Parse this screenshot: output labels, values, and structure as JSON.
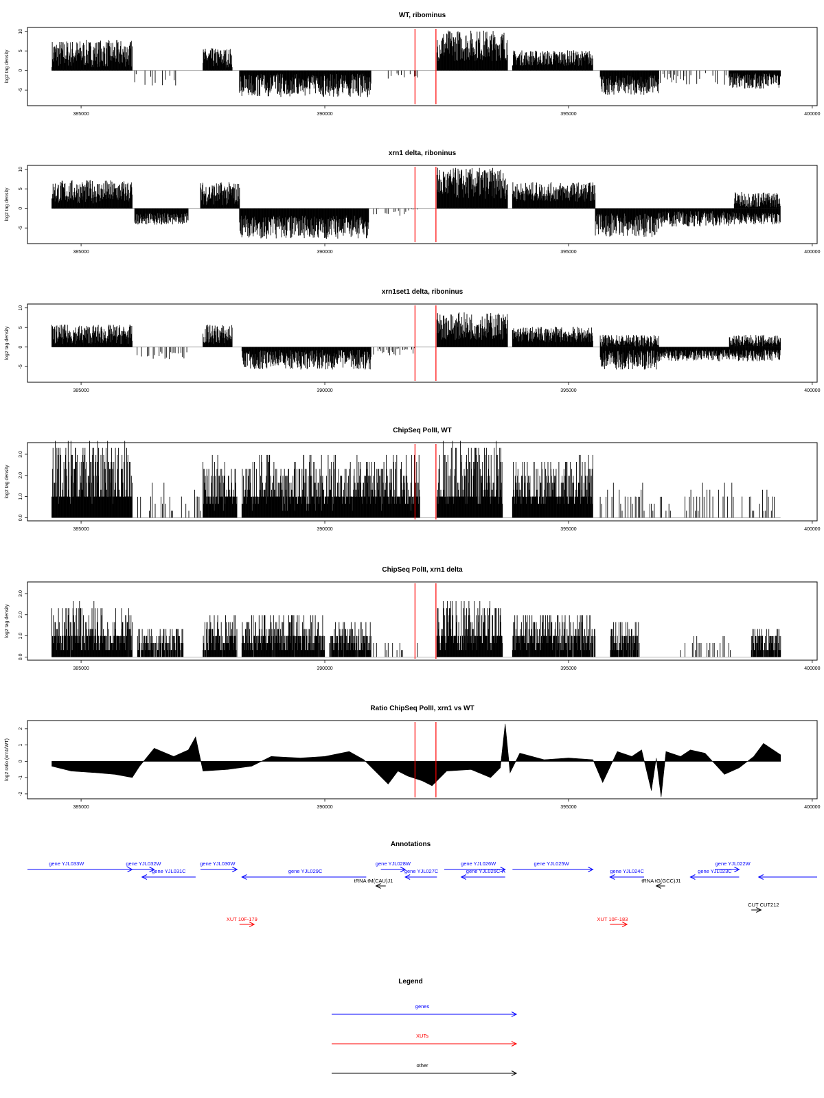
{
  "colors": {
    "genes": "#0000ff",
    "xuts": "#ff0000",
    "other": "#000000",
    "marker": "#ff0000",
    "data": "#000000"
  },
  "chart_data": [
    {
      "type": "bar",
      "title": "WT, ribominus",
      "ylabel": "log2 tag density",
      "x_ticks": [
        "385000",
        "390000",
        "395000",
        "400000"
      ],
      "xlim": [
        383900,
        400100
      ],
      "y_ticks": [
        "-5",
        "0",
        "5",
        "10"
      ],
      "ylim": [
        -9,
        11
      ],
      "baseline": 0,
      "markers_x": [
        391850,
        392280
      ],
      "segments": [
        {
          "x": [
            384400,
            386050
          ],
          "sign": 1,
          "level": 4,
          "spread": 3.5
        },
        {
          "x": [
            386100,
            387150
          ],
          "sign": -1,
          "level": 2.2,
          "spread": 1.5,
          "sparse": true
        },
        {
          "x": [
            387500,
            388100
          ],
          "sign": 1,
          "level": 3,
          "spread": 2.5
        },
        {
          "x": [
            388250,
            390950
          ],
          "sign": -1,
          "level": 3.5,
          "spread": 3
        },
        {
          "x": [
            391300,
            391900
          ],
          "sign": -1,
          "level": 1,
          "spread": 1,
          "sparse": true
        },
        {
          "x": [
            392300,
            393750
          ],
          "sign": 1,
          "level": 6,
          "spread": 4
        },
        {
          "x": [
            393850,
            395500
          ],
          "sign": 1,
          "level": 3,
          "spread": 2
        },
        {
          "x": [
            395650,
            396850
          ],
          "sign": -1,
          "level": 3.5,
          "spread": 2.5
        },
        {
          "x": [
            396850,
            398300
          ],
          "sign": -1,
          "level": 2,
          "spread": 1.5,
          "sparse": true
        },
        {
          "x": [
            398300,
            399350
          ],
          "sign": -1,
          "level": 2.5,
          "spread": 2
        }
      ]
    },
    {
      "type": "bar",
      "title": "xrn1 delta, riboninus",
      "ylabel": "log2 tag density",
      "x_ticks": [
        "385000",
        "390000",
        "395000",
        "400000"
      ],
      "xlim": [
        383900,
        400100
      ],
      "y_ticks": [
        "-5",
        "0",
        "5",
        "10"
      ],
      "ylim": [
        -9,
        11
      ],
      "baseline": 0,
      "markers_x": [
        391850,
        392280
      ],
      "segments": [
        {
          "x": [
            384400,
            386050
          ],
          "sign": 1,
          "level": 4,
          "spread": 3
        },
        {
          "x": [
            386100,
            387200
          ],
          "sign": -1,
          "level": 2.5,
          "spread": 1.5
        },
        {
          "x": [
            387450,
            388250
          ],
          "sign": 1,
          "level": 3.5,
          "spread": 3
        },
        {
          "x": [
            388250,
            390900
          ],
          "sign": -1,
          "level": 4.5,
          "spread": 3
        },
        {
          "x": [
            391000,
            391900
          ],
          "sign": -1,
          "level": 1,
          "spread": 1,
          "sparse": true
        },
        {
          "x": [
            392300,
            393750
          ],
          "sign": 1,
          "level": 6,
          "spread": 4
        },
        {
          "x": [
            393850,
            395550
          ],
          "sign": 1,
          "level": 4,
          "spread": 2.5
        },
        {
          "x": [
            395550,
            396850
          ],
          "sign": -1,
          "level": 4,
          "spread": 3
        },
        {
          "x": [
            396850,
            398400
          ],
          "sign": -1,
          "level": 2.5,
          "spread": 2
        },
        {
          "x": [
            398400,
            399350
          ],
          "sign": 1,
          "level": 2,
          "spread": 2
        },
        {
          "x": [
            398400,
            399350
          ],
          "sign": -1,
          "level": 2.5,
          "spread": 1.5
        }
      ]
    },
    {
      "type": "bar",
      "title": "xrn1set1 delta, riboninus",
      "ylabel": "log2 tag density",
      "x_ticks": [
        "385000",
        "390000",
        "395000",
        "400000"
      ],
      "xlim": [
        383900,
        400100
      ],
      "y_ticks": [
        "-5",
        "0",
        "5",
        "10"
      ],
      "ylim": [
        -9,
        11
      ],
      "baseline": 0,
      "markers_x": [
        391850,
        392280
      ],
      "segments": [
        {
          "x": [
            384400,
            386050
          ],
          "sign": 1,
          "level": 3,
          "spread": 2.5
        },
        {
          "x": [
            386150,
            387200
          ],
          "sign": -1,
          "level": 2,
          "spread": 1.2,
          "sparse": true
        },
        {
          "x": [
            387500,
            388100
          ],
          "sign": 1,
          "level": 3,
          "spread": 2.5
        },
        {
          "x": [
            388300,
            390950
          ],
          "sign": -1,
          "level": 3,
          "spread": 2.5
        },
        {
          "x": [
            391000,
            391900
          ],
          "sign": -1,
          "level": 1,
          "spread": 1,
          "sparse": true
        },
        {
          "x": [
            392300,
            393750
          ],
          "sign": 1,
          "level": 5,
          "spread": 3.5
        },
        {
          "x": [
            393850,
            395500
          ],
          "sign": 1,
          "level": 3,
          "spread": 2
        },
        {
          "x": [
            395650,
            396850
          ],
          "sign": -1,
          "level": 3,
          "spread": 2.5
        },
        {
          "x": [
            395650,
            396850
          ],
          "sign": 1,
          "level": 1.5,
          "spread": 1.5
        },
        {
          "x": [
            396850,
            398300
          ],
          "sign": -1,
          "level": 2,
          "spread": 1.5
        },
        {
          "x": [
            398300,
            399350
          ],
          "sign": -1,
          "level": 2,
          "spread": 1.5
        },
        {
          "x": [
            398300,
            399350
          ],
          "sign": 1,
          "level": 1.5,
          "spread": 1.5
        }
      ]
    },
    {
      "type": "bar",
      "title": "ChipSeq PolII, WT",
      "ylabel": "log2 tag density",
      "x_ticks": [
        "385000",
        "390000",
        "395000",
        "400000"
      ],
      "xlim": [
        383900,
        400100
      ],
      "y_ticks": [
        "0.0",
        "1.0",
        "2.0",
        "3.0"
      ],
      "ylim": [
        -0.15,
        3.55
      ],
      "baseline": 0,
      "markers_x": [
        391850,
        392280
      ],
      "positive_only": true,
      "segments": [
        {
          "x": [
            384400,
            386050
          ],
          "sign": 1,
          "level": 2.0,
          "spread": 1.5
        },
        {
          "x": [
            386100,
            387500
          ],
          "sign": 1,
          "level": 0.8,
          "spread": 0.8,
          "sparse": true
        },
        {
          "x": [
            387500,
            388200
          ],
          "sign": 1,
          "level": 1.5,
          "spread": 1.2
        },
        {
          "x": [
            388300,
            391950
          ],
          "sign": 1,
          "level": 1.6,
          "spread": 1.3
        },
        {
          "x": [
            392300,
            393650
          ],
          "sign": 1,
          "level": 2.0,
          "spread": 1.5
        },
        {
          "x": [
            393850,
            395500
          ],
          "sign": 1,
          "level": 1.6,
          "spread": 1.2
        },
        {
          "x": [
            395650,
            396550
          ],
          "sign": 1,
          "level": 0.8,
          "spread": 0.8,
          "sparse": true
        },
        {
          "x": [
            396550,
            397100
          ],
          "sign": 1,
          "level": 0.5,
          "spread": 0.6,
          "sparse": true
        },
        {
          "x": [
            397300,
            399350
          ],
          "sign": 1,
          "level": 0.9,
          "spread": 0.8,
          "sparse": true
        }
      ]
    },
    {
      "type": "bar",
      "title": "ChipSeq PolII, xrn1 delta",
      "ylabel": "log2 tag density",
      "x_ticks": [
        "385000",
        "390000",
        "395000",
        "400000"
      ],
      "xlim": [
        383900,
        400100
      ],
      "y_ticks": [
        "0.0",
        "1.0",
        "2.0",
        "3.0"
      ],
      "ylim": [
        -0.15,
        3.55
      ],
      "baseline": 0,
      "markers_x": [
        391850,
        392280
      ],
      "positive_only": true,
      "segments": [
        {
          "x": [
            384400,
            386050
          ],
          "sign": 1,
          "level": 1.2,
          "spread": 1.2
        },
        {
          "x": [
            386150,
            387100
          ],
          "sign": 1,
          "level": 0.6,
          "spread": 0.8
        },
        {
          "x": [
            387500,
            388200
          ],
          "sign": 1,
          "level": 0.9,
          "spread": 1.0
        },
        {
          "x": [
            388300,
            390000
          ],
          "sign": 1,
          "level": 1.0,
          "spread": 1.0
        },
        {
          "x": [
            390100,
            390950
          ],
          "sign": 1,
          "level": 0.8,
          "spread": 0.8
        },
        {
          "x": [
            391000,
            391900
          ],
          "sign": 1,
          "level": 0.3,
          "spread": 0.4,
          "sparse": true
        },
        {
          "x": [
            392300,
            393650
          ],
          "sign": 1,
          "level": 1.4,
          "spread": 1.2
        },
        {
          "x": [
            393850,
            395550
          ],
          "sign": 1,
          "level": 1.0,
          "spread": 1.0
        },
        {
          "x": [
            395850,
            396450
          ],
          "sign": 1,
          "level": 0.8,
          "spread": 0.9
        },
        {
          "x": [
            397300,
            398350
          ],
          "sign": 1,
          "level": 0.4,
          "spread": 0.6,
          "sparse": true
        },
        {
          "x": [
            398750,
            399350
          ],
          "sign": 1,
          "level": 0.7,
          "spread": 0.7
        }
      ]
    },
    {
      "type": "area",
      "title": "Ratio ChipSeq PolII, xrn1 vs WT",
      "ylabel": "log2 ratio (xrn1/WT)",
      "x_ticks": [
        "385000",
        "390000",
        "395000",
        "400000"
      ],
      "xlim": [
        383900,
        400100
      ],
      "y_ticks": [
        "-2",
        "-1",
        "0",
        "1",
        "2"
      ],
      "ylim": [
        -2.3,
        2.5
      ],
      "baseline": 0,
      "markers_x": [
        391850,
        392280
      ],
      "x": [
        384400,
        384800,
        385300,
        385700,
        386050,
        386200,
        386500,
        386900,
        387200,
        387350,
        387500,
        388000,
        388500,
        388900,
        389500,
        390000,
        390500,
        390800,
        391000,
        391300,
        391500,
        391700,
        392000,
        392200,
        392500,
        393000,
        393400,
        393600,
        393700,
        393800,
        394000,
        394500,
        395000,
        395500,
        395700,
        396000,
        396300,
        396500,
        396700,
        396800,
        396900,
        397000,
        397300,
        397500,
        397800,
        398200,
        398500,
        398800,
        399000,
        399350
      ],
      "y": [
        -0.3,
        -0.6,
        -0.7,
        -0.8,
        -1.0,
        -0.3,
        0.8,
        0.3,
        0.7,
        1.5,
        -0.6,
        -0.5,
        -0.3,
        0.3,
        0.2,
        0.3,
        0.6,
        0.1,
        -0.5,
        -1.4,
        -0.6,
        -0.9,
        -1.2,
        -1.5,
        -0.6,
        -0.5,
        -1.0,
        -0.4,
        2.3,
        -0.7,
        0.5,
        0.1,
        0.2,
        0.1,
        -1.3,
        0.6,
        0.3,
        0.7,
        -1.8,
        0.2,
        -2.2,
        0.6,
        0.3,
        0.7,
        0.5,
        -0.8,
        -0.4,
        0.3,
        1.1,
        0.4
      ]
    }
  ],
  "annotations": {
    "title": "Annotations",
    "genes": [
      {
        "label": "gene YJL033W",
        "x": [
          383900,
          386050
        ],
        "dir": "right",
        "row": 0,
        "label_x": 384700
      },
      {
        "label": "gene YJL032W",
        "x": [
          386050,
          386500
        ],
        "dir": "right",
        "row": 0,
        "label_x": 386280
      },
      {
        "label": "gene YJL031C",
        "x": [
          386250,
          387350
        ],
        "dir": "left",
        "row": 1,
        "label_x": 386800
      },
      {
        "label": "gene YJL030W",
        "x": [
          387450,
          388200
        ],
        "dir": "right",
        "row": 0,
        "label_x": 387800
      },
      {
        "label": "gene YJL029C",
        "x": [
          388300,
          390850
        ],
        "dir": "left",
        "row": 1,
        "label_x": 389600
      },
      {
        "label": "gene YJL028W",
        "x": [
          391150,
          391650
        ],
        "dir": "right",
        "row": 0,
        "label_x": 391400
      },
      {
        "label": "gene YJL027C",
        "x": [
          391650,
          392300
        ],
        "dir": "left",
        "row": 1,
        "label_x": 391980
      },
      {
        "label": "gene YJL026W",
        "x": [
          392450,
          393700
        ],
        "dir": "right",
        "row": 0,
        "label_x": 393150
      },
      {
        "label": "gene YJL026C-A",
        "x": [
          392800,
          393700
        ],
        "dir": "left",
        "row": 1,
        "label_x": 393300
      },
      {
        "label": "gene YJL025W",
        "x": [
          393850,
          395500
        ],
        "dir": "right",
        "row": 0,
        "label_x": 394650
      },
      {
        "label": "gene YJL024C",
        "x": [
          395850,
          396550
        ],
        "dir": "left",
        "row": 1,
        "label_x": 396200
      },
      {
        "label": "gene YJL023C",
        "x": [
          397500,
          398500
        ],
        "dir": "left",
        "row": 1,
        "label_x": 398000
      },
      {
        "label": "gene YJL022W",
        "x": [
          398000,
          398500
        ],
        "dir": "right",
        "row": 0,
        "label_x": 398370
      },
      {
        "label": "",
        "x": [
          398900,
          400100
        ],
        "dir": "left",
        "row": 1,
        "label_x": 399500
      }
    ],
    "other": [
      {
        "label": "tRNA tM(CAU)J1",
        "x": [
          391050,
          391250
        ],
        "dir": "left",
        "row": 2,
        "label_x": 391000
      },
      {
        "label": "tRNA tG(GCC)J1",
        "x": [
          396800,
          396980
        ],
        "dir": "left",
        "row": 2,
        "label_x": 396900
      },
      {
        "label": "CUT CUT212",
        "x": [
          398750,
          398950
        ],
        "dir": "right",
        "row": 3,
        "label_x": 399000
      }
    ],
    "xuts": [
      {
        "label": "XUT 10F-179",
        "x": [
          388250,
          388550
        ],
        "dir": "right",
        "row": 4,
        "label_x": 388300
      },
      {
        "label": "XUT 10F-183",
        "x": [
          395850,
          396200
        ],
        "dir": "right",
        "row": 4,
        "label_x": 395900
      }
    ]
  },
  "legend": {
    "title": "Legend",
    "items": [
      {
        "label": "genes",
        "key": "genes"
      },
      {
        "label": "XUTs",
        "key": "xuts"
      },
      {
        "label": "other",
        "key": "other"
      }
    ]
  }
}
